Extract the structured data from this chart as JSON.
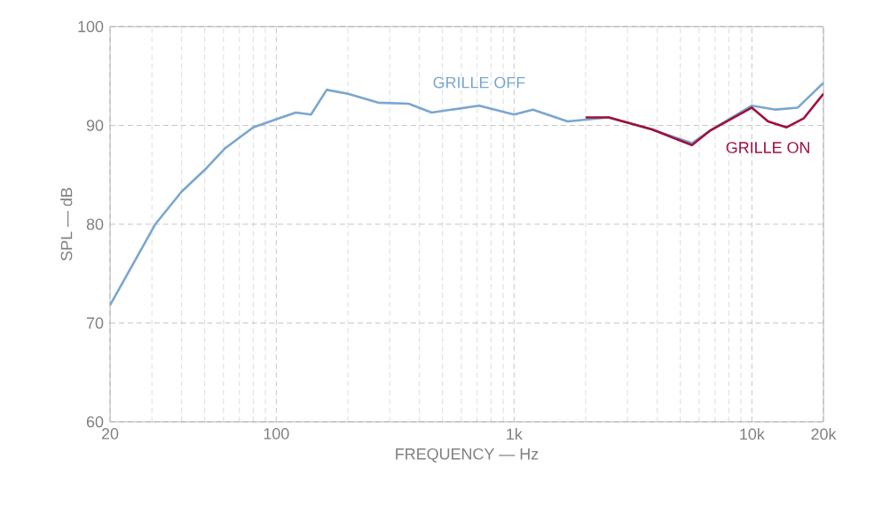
{
  "chart_data": {
    "type": "line",
    "xlabel": "FREQUENCY — Hz",
    "ylabel": "SPL — dB",
    "log": "x",
    "grid": true,
    "legend": false,
    "xlim": [
      20,
      20000
    ],
    "ylim": [
      60,
      100
    ],
    "xticks": [
      20,
      100,
      {
        "value": 1000,
        "label": "1k"
      },
      {
        "value": 10000,
        "label": "10k"
      },
      {
        "value": 20000,
        "label": "20k"
      }
    ],
    "yticks": [
      60,
      70,
      80,
      90,
      100
    ],
    "series": [
      {
        "name": "GRILLE OFF",
        "color": "#7aa6d0",
        "x": [
          20,
          31,
          40,
          51,
          61,
          80,
          102,
          121,
          140,
          163,
          200,
          268,
          360,
          450,
          713,
          1000,
          1200,
          1680,
          2500,
          3800,
          5600,
          6700,
          10000,
          12600,
          15600,
          20000
        ],
        "values": [
          71.8,
          80,
          83.3,
          85.7,
          87.7,
          89.8,
          90.7,
          91.3,
          91.1,
          93.6,
          93.2,
          92.3,
          92.2,
          91.3,
          92,
          91.1,
          91.6,
          90.4,
          90.8,
          89.6,
          88.2,
          89.5,
          92,
          91.6,
          91.8,
          94.3
        ]
      },
      {
        "name": "GRILLE ON",
        "color": "#a0103c",
        "x": [
          2000,
          2500,
          3800,
          5600,
          6700,
          10000,
          11700,
          14000,
          16500,
          20000
        ],
        "values": [
          90.8,
          90.8,
          89.6,
          88,
          89.5,
          91.8,
          90.4,
          89.8,
          90.7,
          93.2
        ]
      }
    ]
  }
}
